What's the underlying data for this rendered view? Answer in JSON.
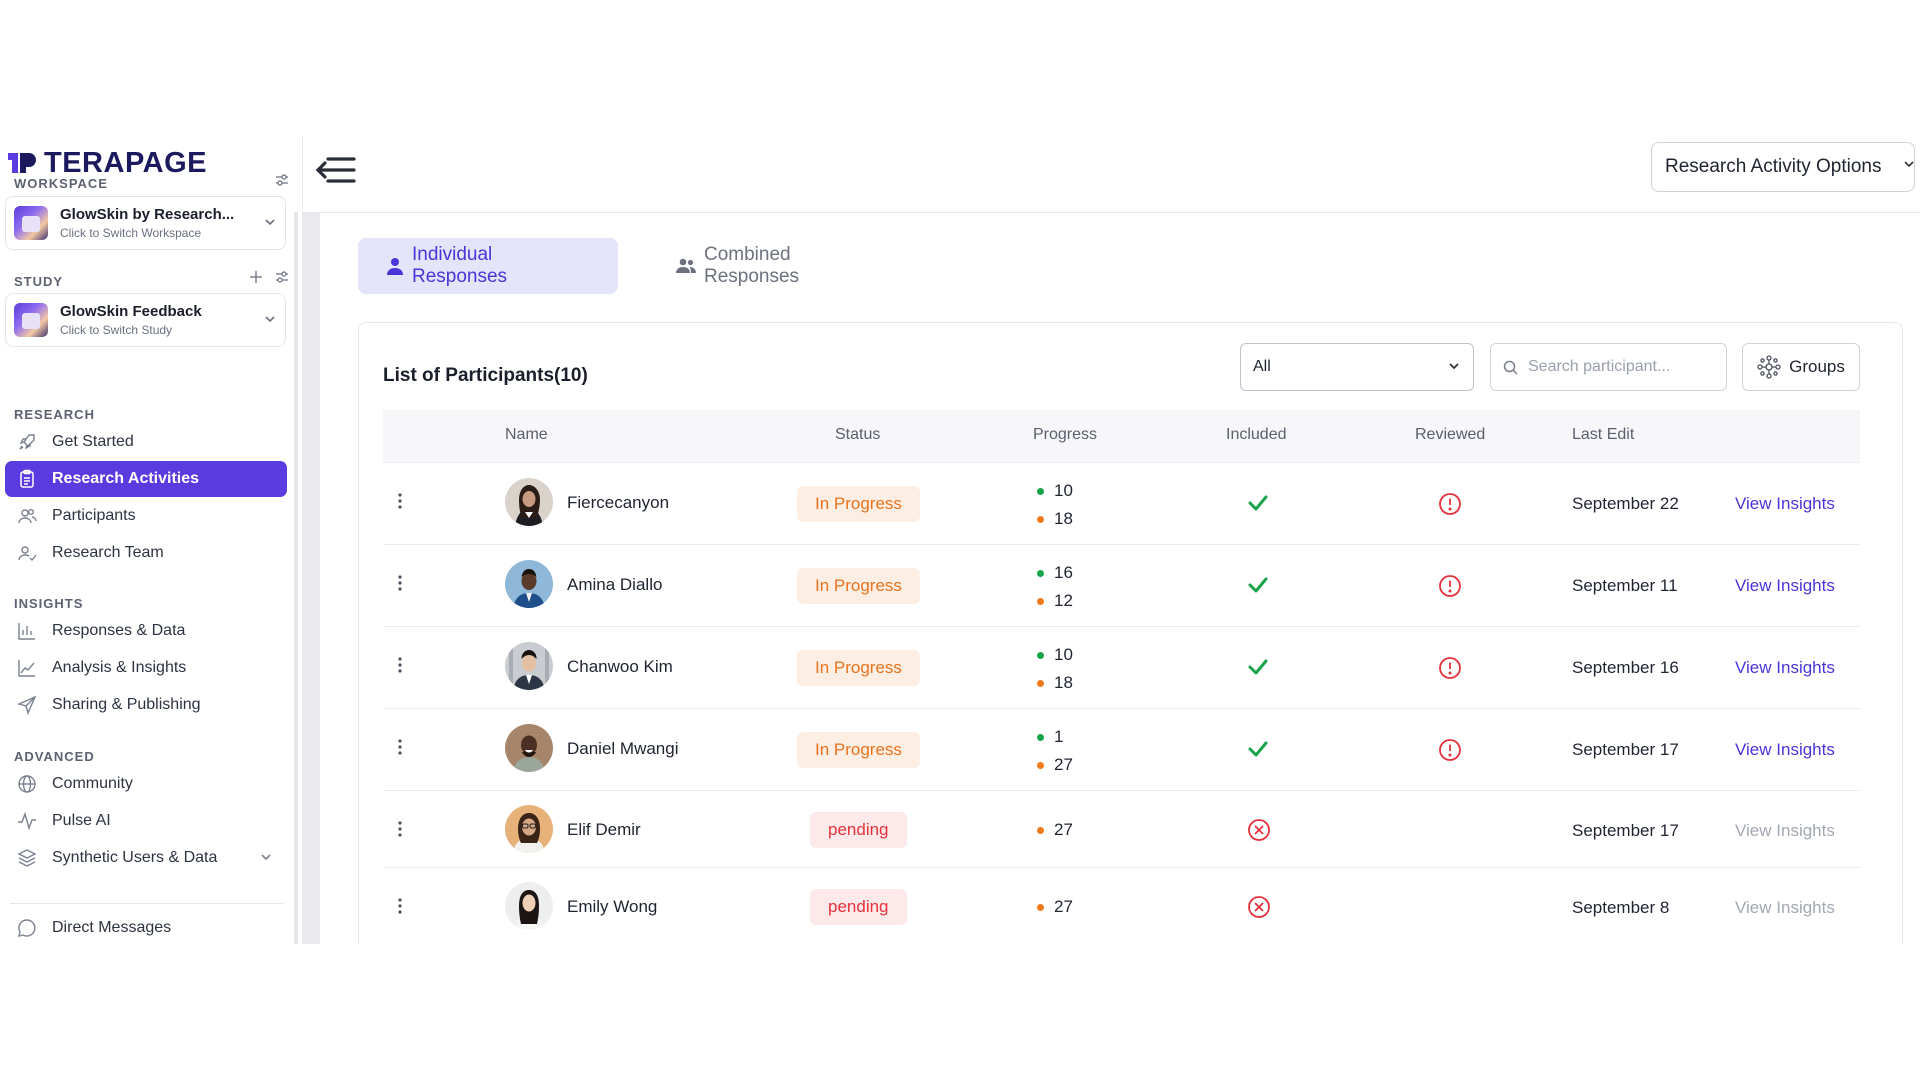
{
  "brand": {
    "logo_text": "TERAPAGE"
  },
  "sidebar": {
    "workspace_label": "WORKSPACE",
    "workspace": {
      "name": "GlowSkin by Research...",
      "hint": "Click to Switch Workspace"
    },
    "study_label": "STUDY",
    "study": {
      "name": "GlowSkin Feedback",
      "hint": "Click to Switch Study"
    },
    "research_label": "RESEARCH",
    "research_items": [
      {
        "label": "Get Started",
        "icon": "rocket-icon"
      },
      {
        "label": "Research Activities",
        "icon": "clipboard-icon",
        "active": true
      },
      {
        "label": "Participants",
        "icon": "users-icon"
      },
      {
        "label": "Research Team",
        "icon": "user-check-icon"
      }
    ],
    "insights_label": "INSIGHTS",
    "insights_items": [
      {
        "label": "Responses & Data",
        "icon": "bar-chart-icon"
      },
      {
        "label": "Analysis & Insights",
        "icon": "line-chart-icon"
      },
      {
        "label": "Sharing & Publishing",
        "icon": "send-icon"
      }
    ],
    "advanced_label": "ADVANCED",
    "advanced_items": [
      {
        "label": "Community",
        "icon": "globe-icon"
      },
      {
        "label": "Pulse AI",
        "icon": "pulse-icon"
      },
      {
        "label": "Synthetic Users & Data",
        "icon": "layers-icon"
      }
    ],
    "messages_label": "Direct Messages"
  },
  "topbar": {
    "options_label": "Research Activity Options"
  },
  "tabs": {
    "individual": "Individual Responses",
    "combined": "Combined Responses"
  },
  "participants": {
    "title": "List of Participants(10)",
    "filter_value": "All",
    "search_placeholder": "Search participant...",
    "groups_label": "Groups",
    "columns": {
      "name": "Name",
      "status": "Status",
      "progress": "Progress",
      "included": "Included",
      "reviewed": "Reviewed",
      "last_edit": "Last Edit"
    },
    "rows": [
      {
        "name": "Fiercecanyon",
        "status": "In Progress",
        "progress_green": "10",
        "progress_orange": "18",
        "included": true,
        "reviewed": "alert",
        "last_edit": "September 22",
        "insights": "View Insights"
      },
      {
        "name": "Amina Diallo",
        "status": "In Progress",
        "progress_green": "16",
        "progress_orange": "12",
        "included": true,
        "reviewed": "alert",
        "last_edit": "September 11",
        "insights": "View Insights"
      },
      {
        "name": "Chanwoo Kim",
        "status": "In Progress",
        "progress_green": "10",
        "progress_orange": "18",
        "included": true,
        "reviewed": "alert",
        "last_edit": "September 16",
        "insights": "View Insights"
      },
      {
        "name": "Daniel Mwangi",
        "status": "In Progress",
        "progress_green": "1",
        "progress_orange": "27",
        "included": true,
        "reviewed": "alert",
        "last_edit": "September 17",
        "insights": "View Insights"
      },
      {
        "name": "Elif Demir",
        "status": "pending",
        "progress_orange": "27",
        "included": false,
        "last_edit": "September 17",
        "insights": "View Insights"
      },
      {
        "name": "Emily Wong",
        "status": "pending",
        "progress_orange": "27",
        "included": false,
        "last_edit": "September 8",
        "insights": "View Insights"
      }
    ]
  },
  "colors": {
    "accent": "#5a3be0",
    "progress": "#e8731f",
    "pending": "#e5323b",
    "included": "#19a34b"
  }
}
